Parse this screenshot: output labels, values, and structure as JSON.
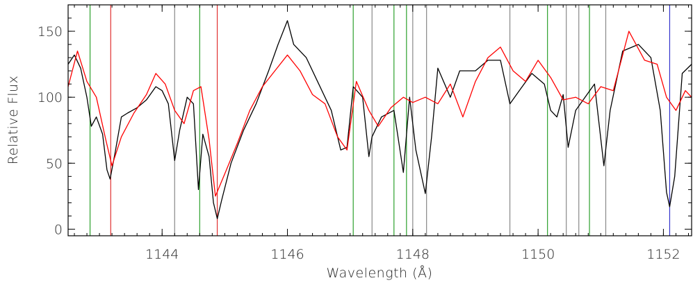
{
  "chart_data": {
    "type": "line",
    "title": "",
    "xlabel": "Wavelength (Å)",
    "ylabel": "Relative Flux",
    "xlim": [
      1142.5,
      1152.45
    ],
    "ylim": [
      -5,
      170
    ],
    "x_ticks": [
      {
        "value": 1144,
        "label": "1144"
      },
      {
        "value": 1146,
        "label": "1146"
      },
      {
        "value": 1148,
        "label": "1148"
      },
      {
        "value": 1150,
        "label": "1150"
      },
      {
        "value": 1152,
        "label": "1152"
      }
    ],
    "x_minor_step": 0.2,
    "y_ticks": [
      {
        "value": 0,
        "label": "0"
      },
      {
        "value": 50,
        "label": "50"
      },
      {
        "value": 100,
        "label": "100"
      },
      {
        "value": 150,
        "label": "150"
      }
    ],
    "y_minor_step": 10,
    "grid": false,
    "series": [
      {
        "color": "#000000",
        "points": [
          [
            1142.5,
            125
          ],
          [
            1142.6,
            132
          ],
          [
            1142.7,
            122
          ],
          [
            1142.8,
            100
          ],
          [
            1142.87,
            78
          ],
          [
            1142.95,
            85
          ],
          [
            1143.05,
            72
          ],
          [
            1143.12,
            45
          ],
          [
            1143.17,
            38
          ],
          [
            1143.25,
            58
          ],
          [
            1143.35,
            85
          ],
          [
            1143.45,
            88
          ],
          [
            1143.6,
            92
          ],
          [
            1143.75,
            98
          ],
          [
            1143.9,
            108
          ],
          [
            1144.0,
            105
          ],
          [
            1144.1,
            95
          ],
          [
            1144.2,
            52
          ],
          [
            1144.28,
            75
          ],
          [
            1144.4,
            100
          ],
          [
            1144.5,
            95
          ],
          [
            1144.58,
            30
          ],
          [
            1144.65,
            72
          ],
          [
            1144.75,
            55
          ],
          [
            1144.82,
            20
          ],
          [
            1144.88,
            8
          ],
          [
            1144.95,
            22
          ],
          [
            1145.1,
            50
          ],
          [
            1145.3,
            75
          ],
          [
            1145.5,
            95
          ],
          [
            1145.7,
            120
          ],
          [
            1145.85,
            140
          ],
          [
            1146.0,
            158
          ],
          [
            1146.1,
            140
          ],
          [
            1146.3,
            130
          ],
          [
            1146.5,
            110
          ],
          [
            1146.7,
            90
          ],
          [
            1146.85,
            60
          ],
          [
            1146.95,
            62
          ],
          [
            1147.05,
            108
          ],
          [
            1147.2,
            100
          ],
          [
            1147.3,
            55
          ],
          [
            1147.35,
            70
          ],
          [
            1147.5,
            85
          ],
          [
            1147.7,
            90
          ],
          [
            1147.85,
            43
          ],
          [
            1147.95,
            100
          ],
          [
            1148.05,
            60
          ],
          [
            1148.2,
            27
          ],
          [
            1148.3,
            70
          ],
          [
            1148.4,
            122
          ],
          [
            1148.6,
            100
          ],
          [
            1148.75,
            120
          ],
          [
            1149.0,
            120
          ],
          [
            1149.2,
            128
          ],
          [
            1149.4,
            128
          ],
          [
            1149.55,
            95
          ],
          [
            1149.7,
            105
          ],
          [
            1149.9,
            118
          ],
          [
            1150.1,
            110
          ],
          [
            1150.2,
            90
          ],
          [
            1150.3,
            85
          ],
          [
            1150.4,
            102
          ],
          [
            1150.48,
            62
          ],
          [
            1150.6,
            90
          ],
          [
            1150.75,
            100
          ],
          [
            1150.9,
            110
          ],
          [
            1151.05,
            48
          ],
          [
            1151.15,
            90
          ],
          [
            1151.35,
            135
          ],
          [
            1151.6,
            140
          ],
          [
            1151.8,
            130
          ],
          [
            1151.95,
            90
          ],
          [
            1152.05,
            28
          ],
          [
            1152.1,
            17
          ],
          [
            1152.18,
            40
          ],
          [
            1152.3,
            118
          ],
          [
            1152.45,
            125
          ]
        ]
      },
      {
        "color": "#ff0000",
        "points": [
          [
            1142.5,
            108
          ],
          [
            1142.65,
            135
          ],
          [
            1142.8,
            112
          ],
          [
            1142.95,
            100
          ],
          [
            1143.1,
            68
          ],
          [
            1143.2,
            48
          ],
          [
            1143.35,
            70
          ],
          [
            1143.55,
            88
          ],
          [
            1143.75,
            102
          ],
          [
            1143.9,
            118
          ],
          [
            1144.05,
            110
          ],
          [
            1144.2,
            90
          ],
          [
            1144.35,
            80
          ],
          [
            1144.5,
            105
          ],
          [
            1144.62,
            108
          ],
          [
            1144.75,
            68
          ],
          [
            1144.85,
            25
          ],
          [
            1145.0,
            42
          ],
          [
            1145.2,
            65
          ],
          [
            1145.4,
            90
          ],
          [
            1145.6,
            108
          ],
          [
            1145.8,
            120
          ],
          [
            1146.0,
            132
          ],
          [
            1146.2,
            120
          ],
          [
            1146.4,
            102
          ],
          [
            1146.6,
            95
          ],
          [
            1146.8,
            70
          ],
          [
            1146.95,
            60
          ],
          [
            1147.1,
            112
          ],
          [
            1147.3,
            90
          ],
          [
            1147.45,
            78
          ],
          [
            1147.65,
            92
          ],
          [
            1147.85,
            100
          ],
          [
            1148.0,
            96
          ],
          [
            1148.2,
            100
          ],
          [
            1148.4,
            95
          ],
          [
            1148.6,
            110
          ],
          [
            1148.8,
            85
          ],
          [
            1149.0,
            112
          ],
          [
            1149.2,
            130
          ],
          [
            1149.4,
            138
          ],
          [
            1149.6,
            120
          ],
          [
            1149.8,
            112
          ],
          [
            1150.0,
            128
          ],
          [
            1150.2,
            115
          ],
          [
            1150.4,
            98
          ],
          [
            1150.6,
            100
          ],
          [
            1150.8,
            95
          ],
          [
            1151.0,
            108
          ],
          [
            1151.2,
            105
          ],
          [
            1151.45,
            150
          ],
          [
            1151.7,
            128
          ],
          [
            1151.9,
            125
          ],
          [
            1152.05,
            100
          ],
          [
            1152.2,
            90
          ],
          [
            1152.35,
            105
          ],
          [
            1152.45,
            100
          ]
        ]
      }
    ],
    "markers": [
      {
        "x": 1142.85,
        "color": "#2ca02c"
      },
      {
        "x": 1143.18,
        "color": "#e03030"
      },
      {
        "x": 1144.2,
        "color": "#888888"
      },
      {
        "x": 1144.6,
        "color": "#2ca02c"
      },
      {
        "x": 1144.88,
        "color": "#e03030"
      },
      {
        "x": 1147.05,
        "color": "#2ca02c"
      },
      {
        "x": 1147.35,
        "color": "#888888"
      },
      {
        "x": 1147.7,
        "color": "#2ca02c"
      },
      {
        "x": 1147.9,
        "color": "#2ca02c"
      },
      {
        "x": 1148.0,
        "color": "#888888"
      },
      {
        "x": 1148.22,
        "color": "#888888"
      },
      {
        "x": 1149.55,
        "color": "#888888"
      },
      {
        "x": 1150.15,
        "color": "#2ca02c"
      },
      {
        "x": 1150.45,
        "color": "#888888"
      },
      {
        "x": 1150.65,
        "color": "#888888"
      },
      {
        "x": 1150.82,
        "color": "#2ca02c"
      },
      {
        "x": 1151.08,
        "color": "#888888"
      },
      {
        "x": 1152.1,
        "color": "#3333cc"
      }
    ]
  }
}
